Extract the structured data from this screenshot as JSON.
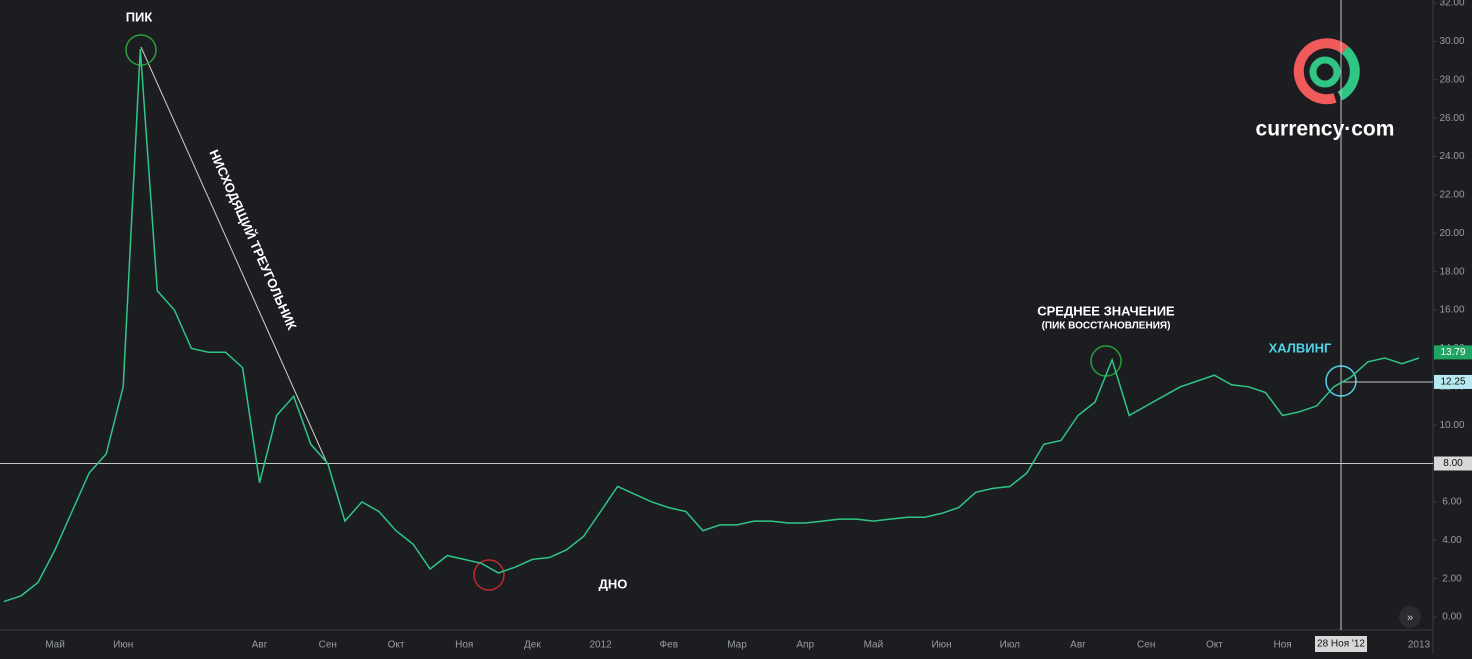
{
  "chart_data": {
    "type": "line",
    "color": "#2fc585",
    "categories": [
      null,
      null,
      null,
      "Май",
      null,
      null,
      null,
      "Июн",
      null,
      null,
      null,
      null,
      null,
      null,
      null,
      "Авг",
      null,
      null,
      null,
      "Сен",
      null,
      null,
      null,
      "Окт",
      null,
      null,
      null,
      "Ноя",
      null,
      null,
      null,
      "Дек",
      null,
      null,
      null,
      "2012",
      null,
      null,
      null,
      "Фев",
      null,
      null,
      null,
      "Мар",
      null,
      null,
      null,
      "Апр",
      null,
      null,
      null,
      "Май",
      null,
      null,
      null,
      "Июн",
      null,
      null,
      null,
      "Июл",
      null,
      null,
      null,
      "Авг",
      null,
      null,
      null,
      "Сен",
      null,
      null,
      null,
      "Окт",
      null,
      null,
      null,
      "Ноя",
      null,
      null,
      null,
      null,
      null,
      null,
      null,
      "2013"
    ],
    "values": [
      0.8,
      1.1,
      1.8,
      3.5,
      5.5,
      7.5,
      8.5,
      12,
      29.6,
      17,
      16,
      14,
      13.8,
      13.8,
      13,
      7,
      10.5,
      11.5,
      9,
      8,
      5,
      6,
      5.5,
      4.5,
      3.8,
      2.5,
      3.2,
      3,
      2.8,
      2.3,
      2.6,
      3,
      3.1,
      3.5,
      4.2,
      5.5,
      6.8,
      6.4,
      6,
      5.7,
      5.5,
      4.5,
      4.8,
      4.8,
      5,
      5,
      4.9,
      4.9,
      5,
      5.1,
      5.1,
      5,
      5.1,
      5.2,
      5.2,
      5.4,
      5.7,
      6.5,
      6.7,
      6.8,
      7.5,
      9,
      9.2,
      10.5,
      11.2,
      13.4,
      10.5,
      11,
      11.5,
      12,
      12.3,
      12.6,
      12.1,
      12,
      11.7,
      10.5,
      10.7,
      11,
      12,
      12.5,
      13.3,
      13.5,
      13.2,
      13.5
    ],
    "ylim": [
      0,
      32
    ],
    "yticks": [
      {
        "value": 0,
        "label": "0.00"
      },
      {
        "value": 2,
        "label": "2.00"
      },
      {
        "value": 4,
        "label": "4.00"
      },
      {
        "value": 6,
        "label": "6.00"
      },
      {
        "value": 8,
        "label": "8.00"
      },
      {
        "value": 10,
        "label": "10.00"
      },
      {
        "value": 12,
        "label": "12.00"
      },
      {
        "value": 14,
        "label": "14.00"
      },
      {
        "value": 16,
        "label": "16.00"
      },
      {
        "value": 18,
        "label": "18.00"
      },
      {
        "value": 20,
        "label": "20.00"
      },
      {
        "value": 22,
        "label": "22.00"
      },
      {
        "value": 24,
        "label": "24.00"
      },
      {
        "value": 26,
        "label": "26.00"
      },
      {
        "value": 28,
        "label": "28.00"
      },
      {
        "value": 30,
        "label": "30.00"
      },
      {
        "value": 32,
        "label": "32.00"
      }
    ],
    "hline": {
      "value": 8,
      "label": "8.00"
    },
    "last_price": {
      "value": 13.79,
      "label": "13.79",
      "color": "#1fa463"
    },
    "crosshair": {
      "date_label": "28 Ноя '12",
      "value": 12.25,
      "label": "12.25"
    },
    "annotations": {
      "peak": "ПИК",
      "triangle": "НИСХОДЯЩИЙ ТРЕУГОЛЬНИК",
      "bottom": "ДНО",
      "mean": "СРЕДНЕЕ ЗНАЧЕНИЕ",
      "mean_sub": "(ПИК ВОССТАНОВЛЕНИЯ)",
      "halving": "ХАЛВИНГ"
    },
    "logo": "currency·com"
  }
}
